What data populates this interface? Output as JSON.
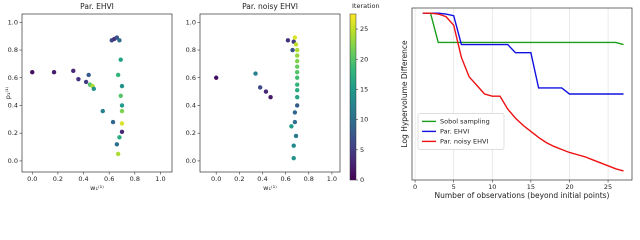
{
  "chart_data": [
    {
      "type": "scatter",
      "title": "Par. EHVI",
      "x_label": "w₁⁽¹⁾",
      "y_label": "p₁⁽¹⁾",
      "x": [
        0.0,
        0.17,
        0.32,
        0.36,
        0.42,
        0.45,
        0.47,
        0.48,
        0.44,
        0.55,
        0.62,
        0.64,
        0.66,
        0.68,
        0.69,
        0.67,
        0.7,
        0.69,
        0.7,
        0.7,
        0.63,
        0.7,
        0.68,
        0.66,
        0.67,
        0.7
      ],
      "y": [
        0.64,
        0.64,
        0.65,
        0.59,
        0.57,
        0.55,
        0.54,
        0.52,
        0.62,
        0.36,
        0.87,
        0.88,
        0.89,
        0.87,
        0.73,
        0.62,
        0.54,
        0.47,
        0.4,
        0.36,
        0.28,
        0.21,
        0.17,
        0.12,
        0.05,
        0.27
      ],
      "color_values": [
        1,
        2,
        3,
        4,
        5,
        20,
        24,
        14,
        8,
        12,
        6,
        4,
        7,
        10,
        16,
        18,
        14,
        20,
        15,
        22,
        9,
        3,
        17,
        10,
        24,
        26
      ],
      "xlim": [
        -0.08,
        1.09
      ],
      "ylim": [
        -0.08,
        1.06
      ],
      "xticks": [
        {
          "value": 0,
          "label": "0.0"
        },
        0.2,
        0.4,
        0.6,
        0.8,
        {
          "value": 1,
          "label": "1.0"
        }
      ],
      "yticks": [
        {
          "value": 0,
          "label": "0.0"
        },
        0.2,
        0.4,
        0.6,
        0.8,
        {
          "value": 1,
          "label": "1.0"
        }
      ],
      "colormap": "viridis",
      "clim": [
        0,
        27.5
      ]
    },
    {
      "type": "scatter",
      "title": "Par. noisy EHVI",
      "x_label": "w₁⁽¹⁾",
      "x": [
        0.0,
        0.34,
        0.38,
        0.43,
        0.47,
        0.62,
        0.67,
        0.66,
        0.68,
        0.69,
        0.7,
        0.7,
        0.7,
        0.7,
        0.7,
        0.7,
        0.7,
        0.7,
        0.7,
        0.7,
        0.68,
        0.68,
        0.69,
        0.67,
        0.67,
        0.65
      ],
      "y": [
        0.6,
        0.63,
        0.53,
        0.5,
        0.46,
        0.87,
        0.86,
        0.8,
        0.89,
        0.84,
        0.8,
        0.76,
        0.72,
        0.68,
        0.64,
        0.6,
        0.55,
        0.51,
        0.46,
        0.4,
        0.35,
        0.28,
        0.18,
        0.11,
        0.02,
        0.25
      ],
      "color_values": [
        1,
        12,
        6,
        3,
        2,
        4,
        5,
        7,
        26,
        25,
        24,
        23,
        22,
        21,
        20,
        19,
        18,
        17,
        16,
        8,
        9,
        10,
        11,
        13,
        14,
        15
      ],
      "xlim": [
        -0.14,
        1.07
      ],
      "ylim": [
        -0.08,
        1.06
      ],
      "xticks": [
        {
          "value": 0,
          "label": "0.0"
        },
        0.2,
        0.4,
        0.6,
        0.8,
        {
          "value": 1,
          "label": "1.0"
        }
      ],
      "yticks": [
        {
          "value": 0,
          "label": "0.0"
        },
        0.2,
        0.4,
        0.6,
        0.8,
        {
          "value": 1,
          "label": "1.0"
        }
      ],
      "colormap": "viridis",
      "clim": [
        0,
        27.5
      ],
      "colorbar_label": "Iteration",
      "colorbar_ticks": [
        0,
        5,
        10,
        15,
        20,
        25
      ]
    },
    {
      "type": "line",
      "x_label": "Number of observations (beyond initial points)",
      "y_label": "Log Hypervolume Difference",
      "x": [
        1,
        2,
        3,
        4,
        5,
        6,
        7,
        8,
        9,
        10,
        11,
        12,
        13,
        14,
        15,
        16,
        17,
        18,
        19,
        20,
        21,
        22,
        23,
        24,
        25,
        26,
        27
      ],
      "series": [
        {
          "name": "Sobol sampling",
          "color": "#1a9e1a",
          "values": [
            3.88,
            3.88,
            3.2,
            3.2,
            3.2,
            3.2,
            3.2,
            3.2,
            3.2,
            3.2,
            3.2,
            3.2,
            3.2,
            3.2,
            3.2,
            3.2,
            3.2,
            3.2,
            3.2,
            3.2,
            3.2,
            3.2,
            3.2,
            3.2,
            3.2,
            3.2,
            3.15
          ]
        },
        {
          "name": "Par. EHVI",
          "color": "#1010e0",
          "values": [
            3.88,
            3.88,
            3.88,
            3.86,
            3.82,
            3.15,
            3.15,
            3.15,
            3.15,
            3.15,
            3.15,
            3.15,
            2.96,
            2.96,
            2.96,
            2.14,
            2.14,
            2.14,
            2.14,
            2.0,
            2.0,
            2.0,
            2.0,
            2.0,
            2.0,
            2.0,
            2.0
          ]
        },
        {
          "name": "Par. noisy EHVI",
          "color": "#ee1111",
          "values": [
            3.88,
            3.88,
            3.86,
            3.8,
            3.6,
            2.85,
            2.4,
            2.2,
            2.0,
            1.95,
            1.95,
            1.65,
            1.44,
            1.27,
            1.13,
            0.99,
            0.87,
            0.78,
            0.71,
            0.64,
            0.59,
            0.54,
            0.47,
            0.4,
            0.33,
            0.26,
            0.21
          ]
        }
      ],
      "xlim": [
        -0.4,
        28.1
      ],
      "ylim": [
        0,
        4.0
      ],
      "xticks": [
        0,
        5,
        10,
        15,
        20,
        25
      ],
      "grid": true,
      "legend": "center left"
    }
  ]
}
